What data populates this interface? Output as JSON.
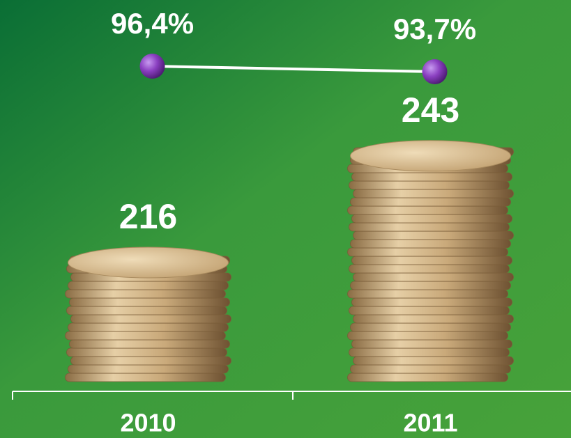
{
  "chart_data": {
    "type": "bar",
    "categories": [
      "2010",
      "2011"
    ],
    "series": [
      {
        "type": "bar",
        "values": [
          216,
          243
        ],
        "color": "#d4b98c"
      },
      {
        "type": "line",
        "axis": "y2",
        "values": [
          96.4,
          93.7
        ],
        "value_labels": [
          "96,4%",
          "93,7%"
        ],
        "color": "#8a3fc0"
      }
    ],
    "ylim": [
      182,
      250
    ],
    "y2lim": [
      60,
      120
    ]
  }
}
